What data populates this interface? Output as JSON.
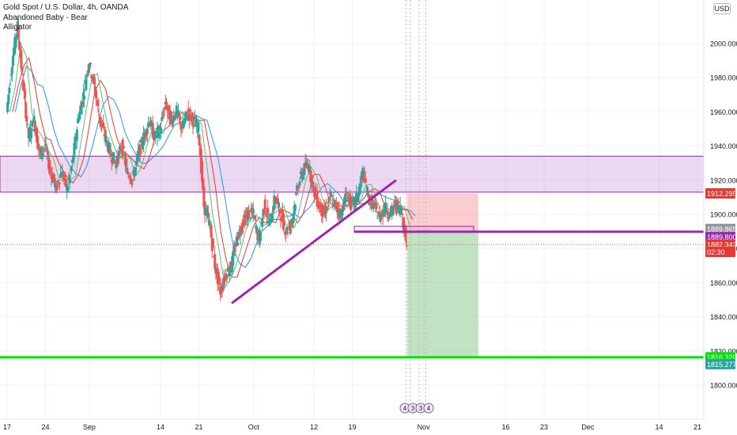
{
  "legend": {
    "symbol_line": "Gold Spot / U.S. Dollar, 4h, OANDA",
    "indicator_1": "Abandoned Baby - Bear",
    "indicator_2": "Alligator"
  },
  "currency_label": "USD",
  "chart_data": {
    "type": "candlestick",
    "title": "Gold Spot / U.S. Dollar, 4h, OANDA",
    "ylim": [
      1780,
      2020
    ],
    "y_ticks": [
      1800,
      1820,
      1840,
      1860,
      1880,
      1900,
      1920,
      1940,
      1960,
      1980,
      2000
    ],
    "y_tick_labels": [
      "1800.000",
      "1820.000",
      "1840.000",
      "1860.000",
      "1880.000",
      "1900.000",
      "1920.000",
      "1940.000",
      "1960.000",
      "1980.000",
      "2000.000"
    ],
    "x_ticks": [
      {
        "label": "17",
        "day": 0
      },
      {
        "label": "24",
        "day": 7
      },
      {
        "label": "Sep",
        "day": 15
      },
      {
        "label": "14",
        "day": 28
      },
      {
        "label": "21",
        "day": 35
      },
      {
        "label": "Oct",
        "day": 45
      },
      {
        "label": "12",
        "day": 56
      },
      {
        "label": "19",
        "day": 63
      },
      {
        "label": "Nov",
        "day": 76
      },
      {
        "label": "16",
        "day": 91
      },
      {
        "label": "23",
        "day": 98
      },
      {
        "label": "Dec",
        "day": 106
      },
      {
        "label": "14",
        "day": 119
      },
      {
        "label": "21",
        "day": 126
      }
    ],
    "price_path": [
      {
        "day": 0,
        "price": 1960
      },
      {
        "day": 1,
        "price": 1990
      },
      {
        "day": 2,
        "price": 2010
      },
      {
        "day": 3,
        "price": 1975
      },
      {
        "day": 4,
        "price": 1945
      },
      {
        "day": 5,
        "price": 1955
      },
      {
        "day": 6,
        "price": 1935
      },
      {
        "day": 7,
        "price": 1940
      },
      {
        "day": 8,
        "price": 1925
      },
      {
        "day": 9,
        "price": 1915
      },
      {
        "day": 10,
        "price": 1925
      },
      {
        "day": 11,
        "price": 1915
      },
      {
        "day": 12,
        "price": 1930
      },
      {
        "day": 13,
        "price": 1955
      },
      {
        "day": 14,
        "price": 1970
      },
      {
        "day": 15,
        "price": 1990
      },
      {
        "day": 16,
        "price": 1975
      },
      {
        "day": 17,
        "price": 1955
      },
      {
        "day": 18,
        "price": 1945
      },
      {
        "day": 19,
        "price": 1935
      },
      {
        "day": 20,
        "price": 1930
      },
      {
        "day": 21,
        "price": 1940
      },
      {
        "day": 22,
        "price": 1925
      },
      {
        "day": 23,
        "price": 1920
      },
      {
        "day": 24,
        "price": 1935
      },
      {
        "day": 25,
        "price": 1945
      },
      {
        "day": 26,
        "price": 1955
      },
      {
        "day": 27,
        "price": 1945
      },
      {
        "day": 28,
        "price": 1950
      },
      {
        "day": 29,
        "price": 1965
      },
      {
        "day": 30,
        "price": 1955
      },
      {
        "day": 31,
        "price": 1960
      },
      {
        "day": 32,
        "price": 1950
      },
      {
        "day": 33,
        "price": 1960
      },
      {
        "day": 34,
        "price": 1955
      },
      {
        "day": 35,
        "price": 1950
      },
      {
        "day": 36,
        "price": 1905
      },
      {
        "day": 37,
        "price": 1895
      },
      {
        "day": 38,
        "price": 1870
      },
      {
        "day": 39,
        "price": 1855
      },
      {
        "day": 40,
        "price": 1865
      },
      {
        "day": 41,
        "price": 1870
      },
      {
        "day": 42,
        "price": 1885
      },
      {
        "day": 43,
        "price": 1895
      },
      {
        "day": 44,
        "price": 1900
      },
      {
        "day": 45,
        "price": 1900
      },
      {
        "day": 46,
        "price": 1885
      },
      {
        "day": 47,
        "price": 1905
      },
      {
        "day": 48,
        "price": 1895
      },
      {
        "day": 49,
        "price": 1910
      },
      {
        "day": 50,
        "price": 1900
      },
      {
        "day": 51,
        "price": 1890
      },
      {
        "day": 52,
        "price": 1895
      },
      {
        "day": 53,
        "price": 1915
      },
      {
        "day": 54,
        "price": 1925
      },
      {
        "day": 55,
        "price": 1930
      },
      {
        "day": 56,
        "price": 1915
      },
      {
        "day": 57,
        "price": 1905
      },
      {
        "day": 58,
        "price": 1900
      },
      {
        "day": 59,
        "price": 1910
      },
      {
        "day": 60,
        "price": 1905
      },
      {
        "day": 61,
        "price": 1900
      },
      {
        "day": 62,
        "price": 1912
      },
      {
        "day": 63,
        "price": 1905
      },
      {
        "day": 64,
        "price": 1910
      },
      {
        "day": 65,
        "price": 1925
      },
      {
        "day": 66,
        "price": 1910
      },
      {
        "day": 67,
        "price": 1905
      },
      {
        "day": 68,
        "price": 1898
      },
      {
        "day": 69,
        "price": 1904
      },
      {
        "day": 70,
        "price": 1900
      },
      {
        "day": 71,
        "price": 1906
      },
      {
        "day": 72,
        "price": 1903
      },
      {
        "day": 73,
        "price": 1882.342
      }
    ],
    "resistance_zone": [
      1913,
      1934
    ],
    "trendline": [
      {
        "day": 41,
        "price": 1848
      },
      {
        "day": 71,
        "price": 1920
      }
    ],
    "support_box": [
      1889.8,
      1893
    ],
    "short_position": {
      "entry": 1889.8,
      "stop": 1912.295,
      "target": 1816.329,
      "start_day": 73,
      "end_day": 86
    },
    "horizontal_lines": [
      {
        "price": 1889.8,
        "color": "#9c27b0"
      },
      {
        "price": 1816.329,
        "color": "#00e600"
      }
    ],
    "price_labels": [
      {
        "text": "1912.295",
        "price": 1912.295,
        "color": "#e53935"
      },
      {
        "text": "1889.865",
        "price": 1891.5,
        "color": "#9598a1"
      },
      {
        "text": "1889.800",
        "price": 1886.7,
        "color": "#9c27b0"
      },
      {
        "text": "1882.342",
        "price": 1882.3,
        "color": "#e53935"
      },
      {
        "text": "02:30",
        "price": 1878,
        "color": "#e53935"
      },
      {
        "text": "1816.329",
        "price": 1816.329,
        "color": "#00e600"
      },
      {
        "text": "1815.277",
        "price": 1812.3,
        "color": "#26a69a"
      }
    ],
    "vertical_dotted_days": [
      72.8,
      73.6,
      75.2,
      76.4
    ],
    "event_badges": [
      "4",
      "3",
      "3",
      "4"
    ]
  }
}
